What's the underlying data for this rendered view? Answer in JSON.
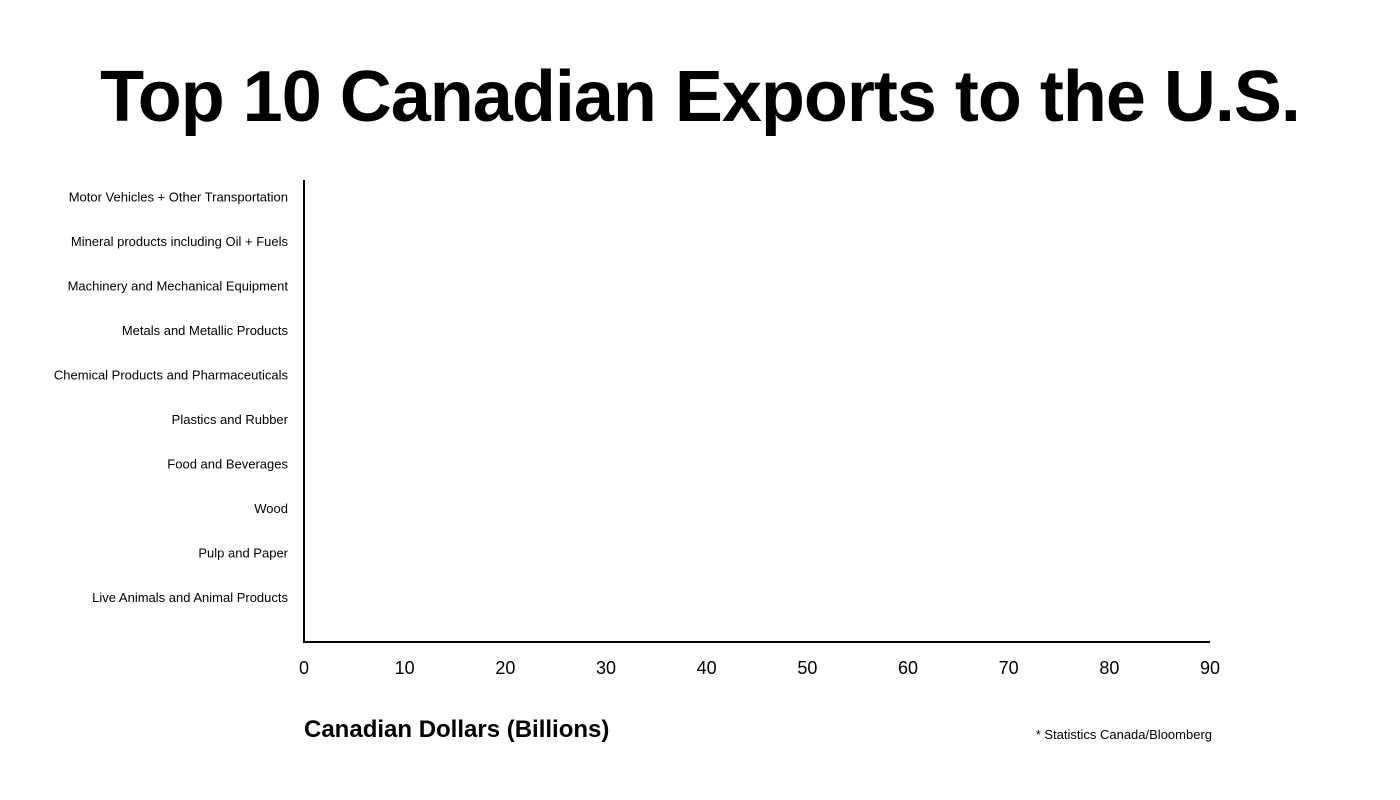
{
  "chart_data": {
    "type": "bar",
    "orientation": "horizontal",
    "title": "Top 10 Canadian Exports to the U.S.",
    "xlabel": "Canadian Dollars (Billions)",
    "ylabel": "",
    "source": "* Statistics Canada/Bloomberg",
    "categories": [
      "Motor Vehicles + Other Transportation",
      "Mineral products including Oil + Fuels",
      "Machinery and Mechanical Equipment",
      "Metals and Metallic Products",
      "Chemical Products and Pharmaceuticals",
      "Plastics and Rubber",
      "Food and Beverages",
      "Wood",
      "Pulp and Paper",
      "Live Animals and Animal Products"
    ],
    "values": [
      null,
      null,
      null,
      null,
      null,
      null,
      null,
      null,
      null,
      null
    ],
    "xlim": [
      0,
      90
    ],
    "xticks": [
      0,
      10,
      20,
      30,
      40,
      50,
      60,
      70,
      80,
      90
    ],
    "grid": false,
    "legend": "none",
    "colors": {
      "axis": "#000000",
      "text": "#000000",
      "background": "#ffffff"
    }
  }
}
